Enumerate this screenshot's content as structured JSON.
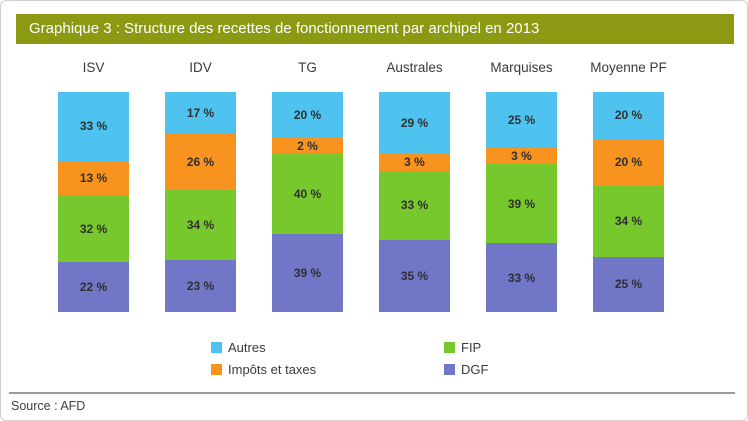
{
  "window": {
    "title": "Graphique 3 : Structure des recettes de fonctionnement par archipel en 2013",
    "source_note": "Source : AFD"
  },
  "colors": {
    "title_bar_bg": "#8c9a13",
    "title_text": "#ffffff",
    "autres": "#4ec3f0",
    "impots_et_taxes": "#f7931e",
    "fip": "#76c82d",
    "dgf": "#7177c6",
    "separator": "#9b9b9b",
    "label_text": "#2f2f2f"
  },
  "legend": {
    "position": "bottom",
    "items": [
      {
        "label": "Autres",
        "color": "#4ec3f0"
      },
      {
        "label": "Impôts et taxes",
        "color": "#f7931e"
      },
      {
        "label": "FIP",
        "color": "#76c82d"
      },
      {
        "label": "DGF",
        "color": "#7177c6"
      }
    ]
  },
  "chart_data": {
    "type": "bar",
    "stacked": true,
    "orientation": "vertical",
    "title": "Graphique 3 : Structure des recettes de fonctionnement par archipel en 2013",
    "categories": [
      "ISV",
      "IDV",
      "TG",
      "Australes",
      "Marquises",
      "Moyenne PF"
    ],
    "stack_order_top_to_bottom": [
      "Autres",
      "Impôts et taxes",
      "FIP",
      "DGF"
    ],
    "series": [
      {
        "name": "Autres",
        "color": "#4ec3f0",
        "values": [
          33,
          17,
          20,
          29,
          25,
          20
        ]
      },
      {
        "name": "Impôts et taxes",
        "color": "#f7931e",
        "values": [
          13,
          26,
          2,
          3,
          3,
          20
        ]
      },
      {
        "name": "FIP",
        "color": "#76c82d",
        "values": [
          32,
          34,
          40,
          33,
          39,
          34
        ]
      },
      {
        "name": "DGF",
        "color": "#7177c6",
        "values": [
          22,
          23,
          39,
          35,
          33,
          25
        ]
      }
    ],
    "value_suffix": " %",
    "unit": "percent",
    "ylim": [
      0,
      100
    ],
    "grid": false,
    "legend_position": "bottom"
  }
}
